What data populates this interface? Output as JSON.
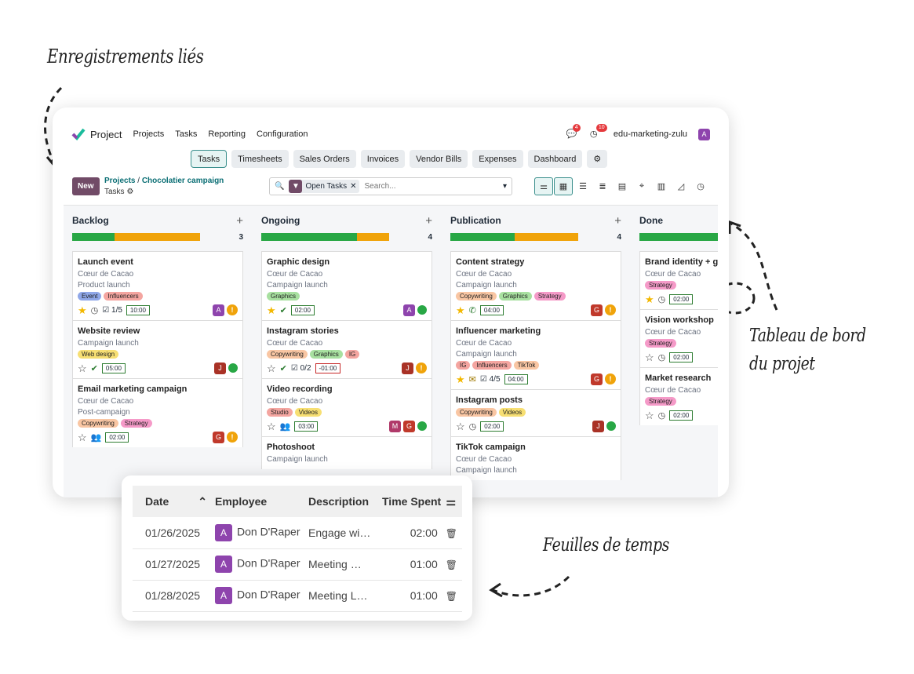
{
  "annotations": {
    "linked_records": "Enregistrements liés",
    "dashboard": [
      "Tableau de bord",
      "du projet"
    ],
    "timesheets": "Feuilles de temps"
  },
  "app": {
    "name": "Project",
    "menus": [
      "Projects",
      "Tasks",
      "Reporting",
      "Configuration"
    ],
    "chat_count": "4",
    "activity_count": "10",
    "company": "edu-marketing-zulu",
    "user_initial": "A"
  },
  "tabs": [
    "Tasks",
    "Timesheets",
    "Sales Orders",
    "Invoices",
    "Vendor Bills",
    "Expenses",
    "Dashboard"
  ],
  "toolbar": {
    "new_label": "New",
    "breadcrumb_parent": "Projects",
    "breadcrumb_current": "Chocolatier campaign",
    "subtitle": "Tasks",
    "filter": "Open Tasks",
    "search_placeholder": "Search..."
  },
  "colors": {
    "accent": "#714b67",
    "teal": "#0a6e74",
    "green": "#28a745",
    "orange": "#f0a30a"
  },
  "columns": [
    {
      "name": "Backlog",
      "count": "3",
      "green_frac": 0.33,
      "orange_frac": 0.67,
      "cards": [
        {
          "title": "Launch event",
          "customer": "Cœur de Cacao",
          "sub": "Product launch",
          "tags": [
            [
              "Event",
              "tg-blue"
            ],
            [
              "Influencers",
              "tg-red"
            ]
          ],
          "star": true,
          "icon": "clock-icon",
          "extra": "☑ 1/5",
          "time": "10:00",
          "neg": false,
          "avatars": [
            "A"
          ],
          "state": "warn"
        },
        {
          "title": "Website review",
          "customer": "",
          "sub": "Campaign launch",
          "tags": [
            [
              "Web design",
              "tg-yel"
            ]
          ],
          "star": false,
          "icon": "check-icon",
          "extra": "",
          "time": "05:00",
          "neg": false,
          "avatars": [
            "J"
          ],
          "state": "green"
        },
        {
          "title": "Email marketing campaign",
          "customer": "Cœur de Cacao",
          "sub": "Post-campaign",
          "tags": [
            [
              "Copywriting",
              "tg-peach"
            ],
            [
              "Strategy",
              "tg-pink"
            ]
          ],
          "star": false,
          "icon": "group-icon",
          "extra": "",
          "time": "02:00",
          "neg": false,
          "avatars": [
            "G"
          ],
          "state": "warn"
        }
      ]
    },
    {
      "name": "Ongoing",
      "count": "4",
      "green_frac": 0.75,
      "orange_frac": 0.25,
      "cards": [
        {
          "title": "Graphic design",
          "customer": "Cœur de Cacao",
          "sub": "Campaign launch",
          "tags": [
            [
              "Graphics",
              "tg-green"
            ]
          ],
          "star": true,
          "icon": "check-icon",
          "extra": "",
          "time": "02:00",
          "neg": false,
          "avatars": [
            "A"
          ],
          "state": "green"
        },
        {
          "title": "Instagram stories",
          "customer": "Cœur de Cacao",
          "sub": "",
          "tags": [
            [
              "Copywriting",
              "tg-peach"
            ],
            [
              "Graphics",
              "tg-green"
            ],
            [
              "IG",
              "tg-red"
            ]
          ],
          "star": false,
          "icon": "check-icon",
          "extra": "☑ 0/2",
          "time": "-01:00",
          "neg": true,
          "avatars": [
            "J"
          ],
          "state": "warn"
        },
        {
          "title": "Video recording",
          "customer": "Cœur de Cacao",
          "sub": "",
          "tags": [
            [
              "Studio",
              "tg-red"
            ],
            [
              "Videos",
              "tg-yel"
            ]
          ],
          "star": false,
          "icon": "group-icon",
          "extra": "",
          "time": "03:00",
          "neg": false,
          "avatars": [
            "M",
            "G"
          ],
          "state": "green"
        },
        {
          "title": "Photoshoot",
          "customer": "",
          "sub": "Campaign launch",
          "tags": [],
          "star": false,
          "icon": "",
          "extra": "",
          "time": "",
          "neg": false,
          "avatars": [],
          "state": ""
        }
      ]
    },
    {
      "name": "Publication",
      "count": "4",
      "green_frac": 0.5,
      "orange_frac": 0.5,
      "cards": [
        {
          "title": "Content strategy",
          "customer": "Cœur de Cacao",
          "sub": "Campaign launch",
          "tags": [
            [
              "Copywriting",
              "tg-peach"
            ],
            [
              "Graphics",
              "tg-green"
            ],
            [
              "Strategy",
              "tg-pink"
            ]
          ],
          "star": true,
          "icon": "phone-icon",
          "extra": "",
          "time": "04:00",
          "neg": false,
          "avatars": [
            "G"
          ],
          "state": "warn"
        },
        {
          "title": "Influencer marketing",
          "customer": "Cœur de Cacao",
          "sub": "Campaign launch",
          "tags": [
            [
              "IG",
              "tg-red"
            ],
            [
              "Influencers",
              "tg-red"
            ],
            [
              "TikTok",
              "tg-peach"
            ]
          ],
          "star": true,
          "icon": "mail-icon",
          "extra": "☑ 4/5",
          "time": "04:00",
          "neg": false,
          "avatars": [
            "G"
          ],
          "state": "warn"
        },
        {
          "title": "Instagram posts",
          "customer": "",
          "sub": "",
          "tags": [
            [
              "Copywriting",
              "tg-peach"
            ],
            [
              "Videos",
              "tg-yel"
            ]
          ],
          "star": false,
          "icon": "clock-icon",
          "extra": "",
          "time": "02:00",
          "neg": false,
          "avatars": [
            "J"
          ],
          "state": "green"
        },
        {
          "title": "TikTok campaign",
          "customer": "Cœur de Cacao",
          "sub": "Campaign launch",
          "tags": [],
          "star": false,
          "icon": "",
          "extra": "",
          "time": "",
          "neg": false,
          "avatars": [],
          "state": ""
        }
      ]
    },
    {
      "name": "Done",
      "count": "",
      "green_frac": 1.0,
      "orange_frac": 0,
      "cards": [
        {
          "title": "Brand identity + g",
          "customer": "Cœur de Cacao",
          "sub": "",
          "tags": [
            [
              "Strategy",
              "tg-pink"
            ]
          ],
          "star": true,
          "icon": "clock-icon",
          "extra": "",
          "time": "02:00",
          "neg": false,
          "avatars": [],
          "state": ""
        },
        {
          "title": "Vision workshop",
          "customer": "Cœur de Cacao",
          "sub": "",
          "tags": [
            [
              "Strategy",
              "tg-pink"
            ]
          ],
          "star": false,
          "icon": "clock-icon",
          "extra": "",
          "time": "02:00",
          "neg": false,
          "avatars": [],
          "state": ""
        },
        {
          "title": "Market research",
          "customer": "Cœur de Cacao",
          "sub": "",
          "tags": [
            [
              "Strategy",
              "tg-pink"
            ]
          ],
          "star": false,
          "icon": "clock-icon",
          "extra": "",
          "time": "02:00",
          "neg": false,
          "avatars": [],
          "state": ""
        }
      ]
    }
  ],
  "timesheet": {
    "headers": [
      "Date",
      "Employee",
      "Description",
      "Time Spent"
    ],
    "rows": [
      {
        "date": "01/26/2025",
        "employee": "Don D'Raper",
        "initial": "A",
        "description": "Engage wi…",
        "time": "02:00"
      },
      {
        "date": "01/27/2025",
        "employee": "Don D'Raper",
        "initial": "A",
        "description": "Meeting …",
        "time": "01:00"
      },
      {
        "date": "01/28/2025",
        "employee": "Don D'Raper",
        "initial": "A",
        "description": "Meeting L…",
        "time": "01:00"
      }
    ]
  }
}
